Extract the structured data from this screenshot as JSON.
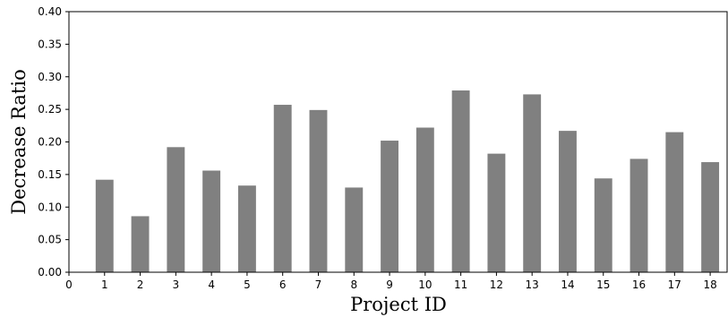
{
  "chart_data": {
    "type": "bar",
    "title": "",
    "xlabel": "Project ID",
    "ylabel": "Decrease Ratio",
    "xlim": [
      0,
      18.5
    ],
    "ylim": [
      0,
      0.4
    ],
    "x_ticks": [
      "0",
      "1",
      "2",
      "3",
      "4",
      "5",
      "6",
      "7",
      "8",
      "9",
      "10",
      "11",
      "12",
      "13",
      "14",
      "15",
      "16",
      "17",
      "18"
    ],
    "y_ticks": [
      "0.00",
      "0.05",
      "0.10",
      "0.15",
      "0.20",
      "0.25",
      "0.30",
      "0.35",
      "0.40"
    ],
    "categories": [
      "1",
      "2",
      "3",
      "4",
      "5",
      "6",
      "7",
      "8",
      "9",
      "10",
      "11",
      "12",
      "13",
      "14",
      "15",
      "16",
      "17",
      "18"
    ],
    "values": [
      0.142,
      0.086,
      0.192,
      0.156,
      0.133,
      0.257,
      0.249,
      0.13,
      0.202,
      0.222,
      0.279,
      0.182,
      0.273,
      0.217,
      0.144,
      0.174,
      0.215,
      0.169
    ],
    "bar_color": "#808080",
    "grid": false,
    "legend": "none"
  }
}
